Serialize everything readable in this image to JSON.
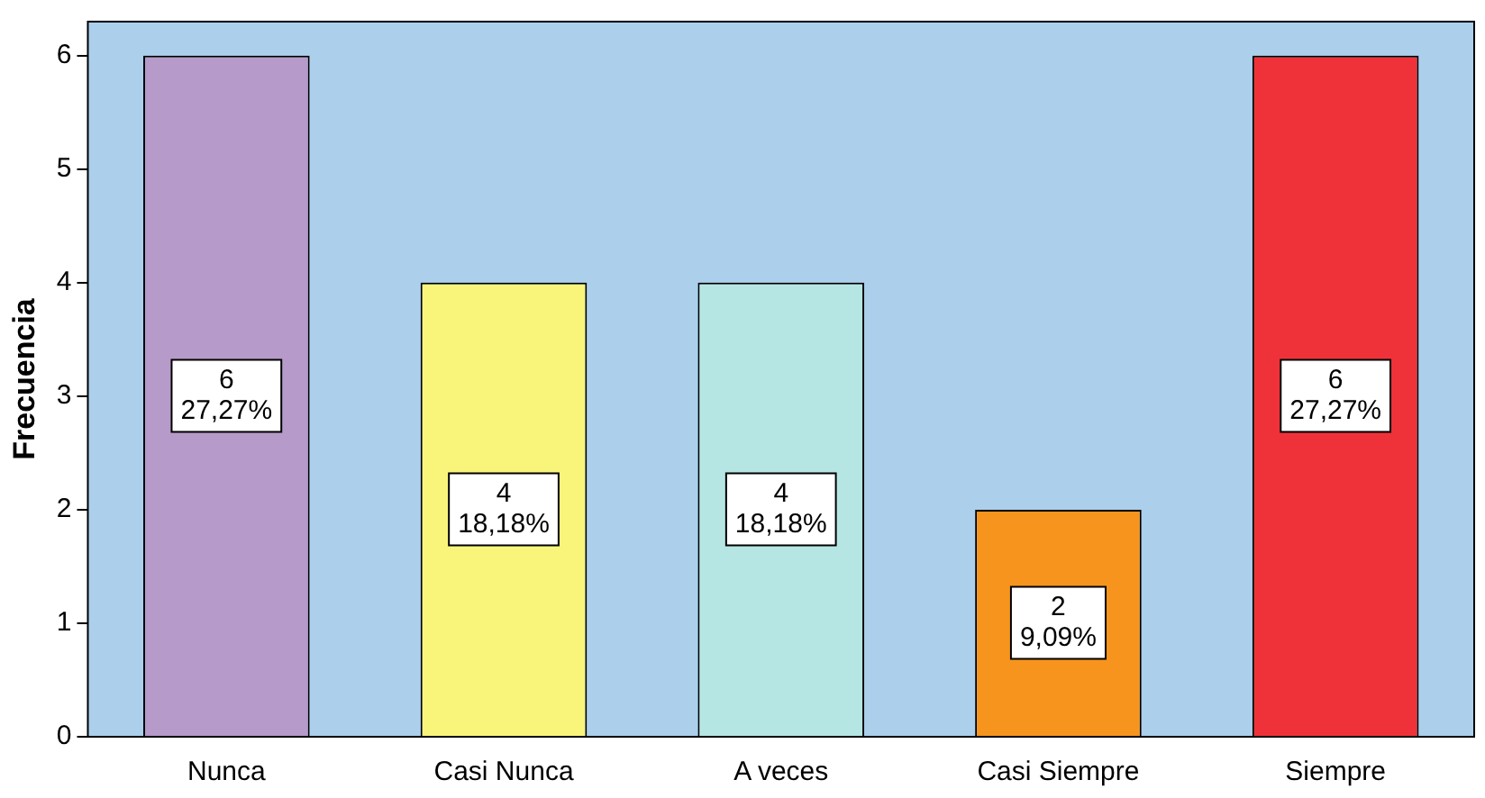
{
  "chart_data": {
    "type": "bar",
    "ylabel": "Frecuencia",
    "categories": [
      "Nunca",
      "Casi Nunca",
      "A veces",
      "Casi Siempre",
      "Siempre"
    ],
    "values": [
      6,
      4,
      4,
      2,
      6
    ],
    "colors": [
      "#b69ac9",
      "#f9f57b",
      "#b5e6e4",
      "#f7941d",
      "#ef3239"
    ],
    "value_labels": [
      "6\n27,27%",
      "4\n18,18%",
      "4\n18,18%",
      "2\n9,09%",
      "6\n27,27%"
    ],
    "ylim": [
      0,
      6.3
    ],
    "yticks": [
      0,
      1,
      2,
      3,
      4,
      5,
      6
    ],
    "grid": false,
    "legend": false
  }
}
